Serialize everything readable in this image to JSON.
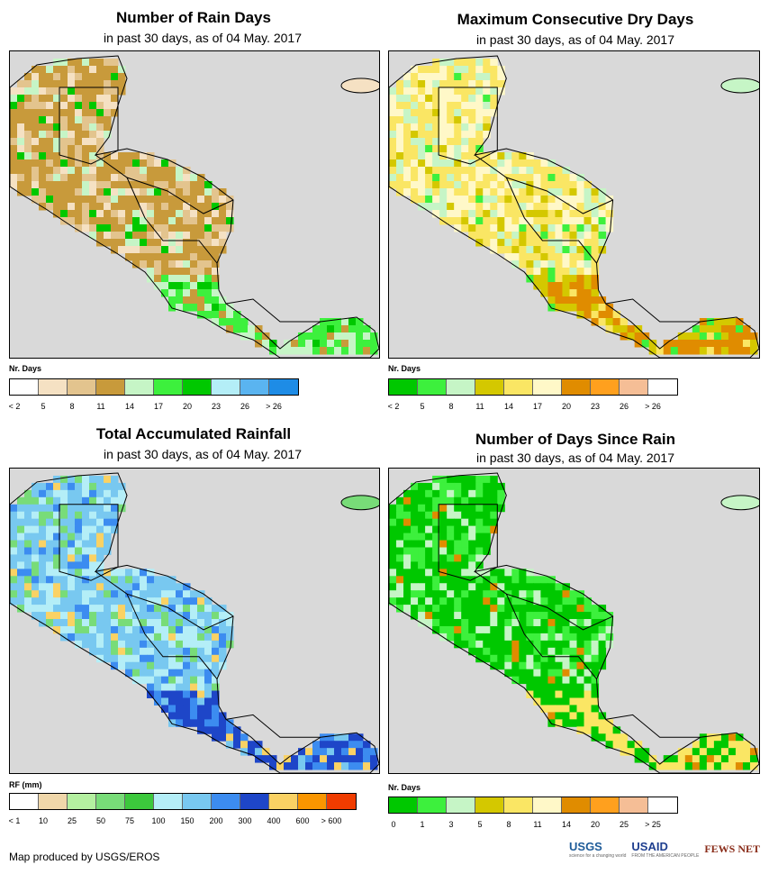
{
  "panels": [
    {
      "title": "Number of Rain Days",
      "subtitle": "in past 30 days, as of 04 May. 2017",
      "legend_title": "Nr. Days",
      "legend_colors": [
        "#ffffff",
        "#f5e1c3",
        "#e3c48e",
        "#c89a3b",
        "#c6f5c6",
        "#3df03d",
        "#00c800",
        "#b4eef7",
        "#5ab4f0",
        "#1e8ce6"
      ],
      "legend_labels": [
        "< 2",
        "5",
        "8",
        "11",
        "14",
        "17",
        "20",
        "23",
        "26",
        "> 26"
      ],
      "map_palette": [
        "#c89a3b",
        "#e3c48e",
        "#f5e1c3",
        "#c6f5c6",
        "#3df03d",
        "#00c800"
      ]
    },
    {
      "title": "Maximum Consecutive Dry Days",
      "subtitle": "in past 30 days, as of 04 May. 2017",
      "legend_title": "Nr. Days",
      "legend_colors": [
        "#00c800",
        "#3df03d",
        "#c6f5c6",
        "#d4c800",
        "#fae664",
        "#fff8c8",
        "#e08c00",
        "#ffa01e",
        "#f5be96",
        "#ffffff"
      ],
      "legend_labels": [
        "< 2",
        "5",
        "8",
        "11",
        "14",
        "17",
        "20",
        "23",
        "26",
        "> 26"
      ],
      "map_palette": [
        "#fae664",
        "#fff8c8",
        "#c6f5c6",
        "#d4c800",
        "#e08c00",
        "#3df03d"
      ]
    },
    {
      "title": "Total Accumulated Rainfall",
      "subtitle": "in past 30 days, as of 04 May. 2017",
      "legend_title": "RF (mm)",
      "legend_colors": [
        "#ffffff",
        "#f0d7aa",
        "#b4f0a0",
        "#78dc78",
        "#3cc83c",
        "#b4eef7",
        "#78c8f0",
        "#3c8cf0",
        "#1e46c8",
        "#fad264",
        "#fa9600",
        "#f03c00"
      ],
      "legend_labels": [
        "< 1",
        "10",
        "25",
        "50",
        "75",
        "100",
        "150",
        "200",
        "300",
        "400",
        "600",
        "> 600"
      ],
      "map_palette": [
        "#78c8f0",
        "#b4eef7",
        "#78dc78",
        "#3c8cf0",
        "#1e46c8",
        "#fad264"
      ]
    },
    {
      "title": "Number of Days Since Rain",
      "subtitle": "in past 30 days, as of 04 May. 2017",
      "legend_title": "Nr. Days",
      "legend_colors": [
        "#00c800",
        "#3df03d",
        "#c6f5c6",
        "#d4c800",
        "#fae664",
        "#fff8c8",
        "#e08c00",
        "#ffa01e",
        "#f5be96",
        "#ffffff"
      ],
      "legend_labels": [
        "0",
        "1",
        "3",
        "5",
        "8",
        "11",
        "14",
        "20",
        "25",
        "> 25"
      ],
      "map_palette": [
        "#00c800",
        "#3df03d",
        "#c6f5c6",
        "#00c800",
        "#fae664",
        "#e08c00"
      ]
    }
  ],
  "footer": {
    "credit": "Map produced by USGS/EROS",
    "logos": [
      "USGS",
      "USAID",
      "FEWS NET"
    ],
    "usgs_tagline": "science for a changing world",
    "usaid_tagline": "FROM THE AMERICAN PEOPLE"
  }
}
